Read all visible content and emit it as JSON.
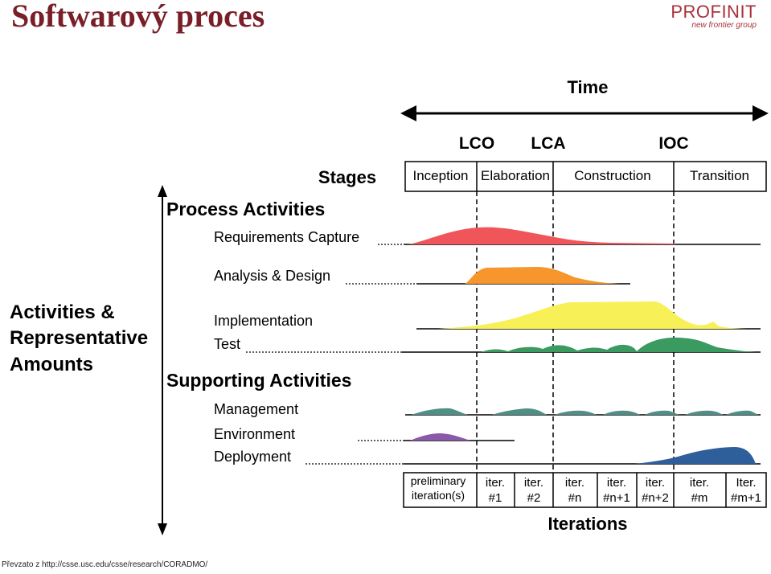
{
  "slide": {
    "title": "Softwarový proces",
    "logo_main": "PROFINIT",
    "logo_sub": "new frontier group",
    "footer": "Převzato z http://csse.usc.edu/csse/research/CORADMO/"
  },
  "diagram": {
    "time_label": "Time",
    "stages_label": "Stages",
    "milestones": [
      "LCO",
      "LCA",
      "IOC"
    ],
    "phases": [
      "Inception",
      "Elaboration",
      "Construction",
      "Transition"
    ],
    "left_label": [
      "Activities &",
      "Representative",
      "Amounts"
    ],
    "process_header": "Process Activities",
    "supporting_header": "Supporting Activities",
    "activities": [
      {
        "label": "Requirements Capture",
        "color": "#f0555a"
      },
      {
        "label": "Analysis & Design",
        "color": "#f7962c"
      },
      {
        "label": "Implementation",
        "color": "#f7f056"
      },
      {
        "label": "Test",
        "color": "#3b9a5f"
      },
      {
        "label": "Management",
        "color": "#4f8f86"
      },
      {
        "label": "Environment",
        "color": "#8a5aa8"
      },
      {
        "label": "Deployment",
        "color": "#2f5f9b"
      }
    ],
    "iterations_label": "Iterations",
    "iterations": [
      {
        "line1": "preliminary",
        "line2": "iteration(s)"
      },
      {
        "line1": "iter.",
        "line2": "#1"
      },
      {
        "line1": "iter.",
        "line2": "#2"
      },
      {
        "line1": "iter.",
        "line2": "#n"
      },
      {
        "line1": "iter.",
        "line2": "#n+1"
      },
      {
        "line1": "iter.",
        "line2": "#n+2"
      },
      {
        "line1": "iter.",
        "line2": "#m"
      },
      {
        "line1": "Iter.",
        "line2": "#m+1"
      }
    ]
  }
}
